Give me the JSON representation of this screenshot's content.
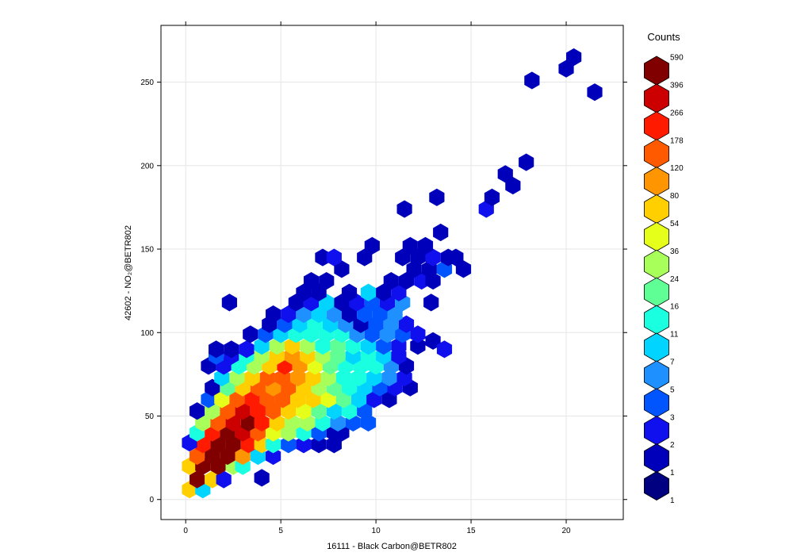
{
  "chart_data": {
    "type": "heatmap",
    "subtype": "hexbin",
    "xlabel": "16111 - Black Carbon@BETR802",
    "ylabel": "42602 - NO₂@BETR802",
    "xlim": [
      -1.3,
      23
    ],
    "ylim": [
      -12,
      284
    ],
    "x_ticks": [
      0,
      5,
      10,
      15,
      20
    ],
    "y_ticks": [
      0,
      50,
      100,
      150,
      200,
      250
    ],
    "grid": true,
    "legend": {
      "title": "Counts",
      "placement": "right",
      "breaks": [
        "590",
        "396",
        "266",
        "178",
        "120",
        "80",
        "54",
        "36",
        "24",
        "16",
        "11",
        "7",
        "5",
        "3",
        "2",
        "1",
        "1"
      ],
      "colors": [
        "#800000",
        "#cc0000",
        "#ff1a00",
        "#ff5a00",
        "#ff9500",
        "#ffcf00",
        "#e6ff1a",
        "#a8ff5a",
        "#60ff96",
        "#1affdf",
        "#00d4ff",
        "#1e90ff",
        "#0055ff",
        "#1010ee",
        "#0000bb",
        "#000080"
      ]
    },
    "hex_width": 0.8,
    "bins": [
      {
        "x": 0.2,
        "y": 6,
        "c": 54
      },
      {
        "x": 0.9,
        "y": 6,
        "c": 7
      },
      {
        "x": 0.6,
        "y": 12,
        "c": 396
      },
      {
        "x": 1.4,
        "y": 12,
        "c": 54
      },
      {
        "x": 2.0,
        "y": 12,
        "c": 2
      },
      {
        "x": 4.0,
        "y": 13,
        "c": 1
      },
      {
        "x": 0.2,
        "y": 20,
        "c": 54
      },
      {
        "x": 0.9,
        "y": 20,
        "c": 590
      },
      {
        "x": 1.7,
        "y": 20,
        "c": 396
      },
      {
        "x": 2.5,
        "y": 20,
        "c": 24
      },
      {
        "x": 3.0,
        "y": 20,
        "c": 11
      },
      {
        "x": 0.6,
        "y": 26,
        "c": 120
      },
      {
        "x": 1.4,
        "y": 26,
        "c": 590
      },
      {
        "x": 2.2,
        "y": 26,
        "c": 396
      },
      {
        "x": 3.0,
        "y": 26,
        "c": 80
      },
      {
        "x": 3.8,
        "y": 26,
        "c": 7
      },
      {
        "x": 4.6,
        "y": 26,
        "c": 2
      },
      {
        "x": 0.9,
        "y": 33,
        "c": 178
      },
      {
        "x": 1.7,
        "y": 33,
        "c": 396
      },
      {
        "x": 2.5,
        "y": 33,
        "c": 396
      },
      {
        "x": 3.3,
        "y": 33,
        "c": 178
      },
      {
        "x": 4.0,
        "y": 33,
        "c": 54
      },
      {
        "x": 4.6,
        "y": 33,
        "c": 11
      },
      {
        "x": 5.4,
        "y": 33,
        "c": 3
      },
      {
        "x": 6.2,
        "y": 33,
        "c": 2
      },
      {
        "x": 7.0,
        "y": 33,
        "c": 1
      },
      {
        "x": 7.8,
        "y": 33,
        "c": 1
      },
      {
        "x": 0.2,
        "y": 34,
        "c": 2
      },
      {
        "x": 0.6,
        "y": 40,
        "c": 11
      },
      {
        "x": 1.4,
        "y": 40,
        "c": 178
      },
      {
        "x": 2.2,
        "y": 40,
        "c": 590
      },
      {
        "x": 3.0,
        "y": 40,
        "c": 266
      },
      {
        "x": 3.8,
        "y": 40,
        "c": 120
      },
      {
        "x": 4.6,
        "y": 40,
        "c": 36
      },
      {
        "x": 5.4,
        "y": 40,
        "c": 24
      },
      {
        "x": 6.2,
        "y": 40,
        "c": 11
      },
      {
        "x": 7.0,
        "y": 40,
        "c": 3
      },
      {
        "x": 7.8,
        "y": 40,
        "c": 1
      },
      {
        "x": 8.2,
        "y": 40,
        "c": 1
      },
      {
        "x": 0.9,
        "y": 46,
        "c": 24
      },
      {
        "x": 1.7,
        "y": 46,
        "c": 120
      },
      {
        "x": 2.5,
        "y": 46,
        "c": 266
      },
      {
        "x": 3.3,
        "y": 46,
        "c": 396
      },
      {
        "x": 4.0,
        "y": 46,
        "c": 178
      },
      {
        "x": 4.8,
        "y": 46,
        "c": 54
      },
      {
        "x": 5.6,
        "y": 46,
        "c": 24
      },
      {
        "x": 6.4,
        "y": 46,
        "c": 24
      },
      {
        "x": 7.2,
        "y": 46,
        "c": 11
      },
      {
        "x": 8.0,
        "y": 46,
        "c": 5
      },
      {
        "x": 8.8,
        "y": 46,
        "c": 3
      },
      {
        "x": 9.6,
        "y": 46,
        "c": 3
      },
      {
        "x": 0.6,
        "y": 53,
        "c": 1
      },
      {
        "x": 1.4,
        "y": 53,
        "c": 24
      },
      {
        "x": 2.2,
        "y": 53,
        "c": 120
      },
      {
        "x": 3.0,
        "y": 53,
        "c": 266
      },
      {
        "x": 3.8,
        "y": 53,
        "c": 178
      },
      {
        "x": 4.6,
        "y": 53,
        "c": 120
      },
      {
        "x": 5.4,
        "y": 53,
        "c": 54
      },
      {
        "x": 6.2,
        "y": 53,
        "c": 36
      },
      {
        "x": 7.0,
        "y": 53,
        "c": 16
      },
      {
        "x": 7.8,
        "y": 53,
        "c": 7
      },
      {
        "x": 8.6,
        "y": 53,
        "c": 11
      },
      {
        "x": 9.4,
        "y": 53,
        "c": 3
      },
      {
        "x": 1.2,
        "y": 60,
        "c": 3
      },
      {
        "x": 1.9,
        "y": 60,
        "c": 36
      },
      {
        "x": 2.7,
        "y": 60,
        "c": 120
      },
      {
        "x": 3.5,
        "y": 60,
        "c": 178
      },
      {
        "x": 4.3,
        "y": 60,
        "c": 120
      },
      {
        "x": 5.1,
        "y": 60,
        "c": 120
      },
      {
        "x": 5.9,
        "y": 60,
        "c": 54
      },
      {
        "x": 6.7,
        "y": 60,
        "c": 54
      },
      {
        "x": 7.5,
        "y": 60,
        "c": 36
      },
      {
        "x": 8.3,
        "y": 60,
        "c": 16
      },
      {
        "x": 9.1,
        "y": 60,
        "c": 7
      },
      {
        "x": 9.9,
        "y": 60,
        "c": 2
      },
      {
        "x": 10.7,
        "y": 60,
        "c": 1
      },
      {
        "x": 1.4,
        "y": 67,
        "c": 1
      },
      {
        "x": 2.2,
        "y": 67,
        "c": 16
      },
      {
        "x": 3.0,
        "y": 67,
        "c": 54
      },
      {
        "x": 3.8,
        "y": 67,
        "c": 120
      },
      {
        "x": 4.6,
        "y": 67,
        "c": 80
      },
      {
        "x": 5.4,
        "y": 67,
        "c": 120
      },
      {
        "x": 6.2,
        "y": 67,
        "c": 54
      },
      {
        "x": 7.0,
        "y": 67,
        "c": 24
      },
      {
        "x": 7.8,
        "y": 67,
        "c": 16
      },
      {
        "x": 8.6,
        "y": 67,
        "c": 11
      },
      {
        "x": 9.4,
        "y": 67,
        "c": 7
      },
      {
        "x": 10.2,
        "y": 67,
        "c": 3
      },
      {
        "x": 11.0,
        "y": 67,
        "c": 2
      },
      {
        "x": 11.8,
        "y": 67,
        "c": 1
      },
      {
        "x": 1.9,
        "y": 73,
        "c": 7
      },
      {
        "x": 2.7,
        "y": 73,
        "c": 24
      },
      {
        "x": 3.5,
        "y": 73,
        "c": 54
      },
      {
        "x": 4.3,
        "y": 73,
        "c": 120
      },
      {
        "x": 5.1,
        "y": 73,
        "c": 120
      },
      {
        "x": 5.9,
        "y": 73,
        "c": 80
      },
      {
        "x": 6.7,
        "y": 73,
        "c": 54
      },
      {
        "x": 7.5,
        "y": 73,
        "c": 24
      },
      {
        "x": 8.3,
        "y": 73,
        "c": 11
      },
      {
        "x": 9.1,
        "y": 73,
        "c": 11
      },
      {
        "x": 9.9,
        "y": 73,
        "c": 7
      },
      {
        "x": 10.7,
        "y": 73,
        "c": 5
      },
      {
        "x": 11.5,
        "y": 73,
        "c": 2
      },
      {
        "x": 1.2,
        "y": 80,
        "c": 1
      },
      {
        "x": 2.0,
        "y": 80,
        "c": 2
      },
      {
        "x": 2.8,
        "y": 80,
        "c": 11
      },
      {
        "x": 3.6,
        "y": 80,
        "c": 24
      },
      {
        "x": 4.4,
        "y": 80,
        "c": 54
      },
      {
        "x": 5.2,
        "y": 80,
        "c": 178
      },
      {
        "x": 6.0,
        "y": 80,
        "c": 80
      },
      {
        "x": 6.8,
        "y": 80,
        "c": 36
      },
      {
        "x": 7.6,
        "y": 80,
        "c": 16
      },
      {
        "x": 8.4,
        "y": 80,
        "c": 11
      },
      {
        "x": 9.2,
        "y": 80,
        "c": 11
      },
      {
        "x": 10.0,
        "y": 80,
        "c": 11
      },
      {
        "x": 10.8,
        "y": 80,
        "c": 5
      },
      {
        "x": 11.6,
        "y": 80,
        "c": 1
      },
      {
        "x": 1.6,
        "y": 86,
        "c": 3
      },
      {
        "x": 2.4,
        "y": 86,
        "c": 2
      },
      {
        "x": 3.2,
        "y": 86,
        "c": 11
      },
      {
        "x": 4.0,
        "y": 86,
        "c": 24
      },
      {
        "x": 4.8,
        "y": 86,
        "c": 54
      },
      {
        "x": 5.6,
        "y": 86,
        "c": 80
      },
      {
        "x": 6.4,
        "y": 86,
        "c": 54
      },
      {
        "x": 7.2,
        "y": 86,
        "c": 24
      },
      {
        "x": 8.0,
        "y": 86,
        "c": 16
      },
      {
        "x": 8.8,
        "y": 86,
        "c": 7
      },
      {
        "x": 9.6,
        "y": 86,
        "c": 11
      },
      {
        "x": 10.4,
        "y": 86,
        "c": 7
      },
      {
        "x": 11.2,
        "y": 86,
        "c": 2
      },
      {
        "x": 1.6,
        "y": 90,
        "c": 1
      },
      {
        "x": 2.4,
        "y": 90,
        "c": 1
      },
      {
        "x": 3.2,
        "y": 90,
        "c": 2
      },
      {
        "x": 4.0,
        "y": 92,
        "c": 7
      },
      {
        "x": 4.8,
        "y": 92,
        "c": 24
      },
      {
        "x": 5.6,
        "y": 92,
        "c": 54
      },
      {
        "x": 6.4,
        "y": 92,
        "c": 24
      },
      {
        "x": 7.2,
        "y": 92,
        "c": 11
      },
      {
        "x": 8.0,
        "y": 92,
        "c": 16
      },
      {
        "x": 8.8,
        "y": 92,
        "c": 11
      },
      {
        "x": 9.6,
        "y": 92,
        "c": 7
      },
      {
        "x": 10.4,
        "y": 92,
        "c": 3
      },
      {
        "x": 11.2,
        "y": 92,
        "c": 2
      },
      {
        "x": 12.2,
        "y": 92,
        "c": 1
      },
      {
        "x": 13.0,
        "y": 95,
        "c": 1
      },
      {
        "x": 13.6,
        "y": 90,
        "c": 2
      },
      {
        "x": 3.4,
        "y": 99,
        "c": 1
      },
      {
        "x": 4.2,
        "y": 99,
        "c": 3
      },
      {
        "x": 5.0,
        "y": 99,
        "c": 7
      },
      {
        "x": 5.8,
        "y": 99,
        "c": 11
      },
      {
        "x": 6.6,
        "y": 99,
        "c": 11
      },
      {
        "x": 7.4,
        "y": 99,
        "c": 11
      },
      {
        "x": 8.2,
        "y": 99,
        "c": 11
      },
      {
        "x": 9.0,
        "y": 99,
        "c": 5
      },
      {
        "x": 9.8,
        "y": 99,
        "c": 3
      },
      {
        "x": 10.6,
        "y": 99,
        "c": 5
      },
      {
        "x": 11.4,
        "y": 99,
        "c": 3
      },
      {
        "x": 12.2,
        "y": 99,
        "c": 2
      },
      {
        "x": 4.4,
        "y": 105,
        "c": 1
      },
      {
        "x": 5.2,
        "y": 105,
        "c": 3
      },
      {
        "x": 6.0,
        "y": 105,
        "c": 7
      },
      {
        "x": 6.8,
        "y": 105,
        "c": 11
      },
      {
        "x": 7.6,
        "y": 105,
        "c": 7
      },
      {
        "x": 8.4,
        "y": 105,
        "c": 5
      },
      {
        "x": 9.2,
        "y": 105,
        "c": 1
      },
      {
        "x": 10.0,
        "y": 105,
        "c": 3
      },
      {
        "x": 10.8,
        "y": 105,
        "c": 5
      },
      {
        "x": 11.6,
        "y": 105,
        "c": 2
      },
      {
        "x": 4.6,
        "y": 111,
        "c": 1
      },
      {
        "x": 5.4,
        "y": 111,
        "c": 2
      },
      {
        "x": 6.2,
        "y": 111,
        "c": 5
      },
      {
        "x": 7.0,
        "y": 111,
        "c": 7
      },
      {
        "x": 7.8,
        "y": 111,
        "c": 5
      },
      {
        "x": 8.6,
        "y": 111,
        "c": 1
      },
      {
        "x": 9.4,
        "y": 111,
        "c": 3
      },
      {
        "x": 10.2,
        "y": 111,
        "c": 3
      },
      {
        "x": 11.0,
        "y": 111,
        "c": 5
      },
      {
        "x": 2.3,
        "y": 118,
        "c": 1
      },
      {
        "x": 5.8,
        "y": 118,
        "c": 1
      },
      {
        "x": 6.6,
        "y": 118,
        "c": 2
      },
      {
        "x": 7.4,
        "y": 118,
        "c": 7
      },
      {
        "x": 8.2,
        "y": 118,
        "c": 1
      },
      {
        "x": 9.0,
        "y": 118,
        "c": 2
      },
      {
        "x": 9.8,
        "y": 118,
        "c": 3
      },
      {
        "x": 10.6,
        "y": 118,
        "c": 2
      },
      {
        "x": 11.4,
        "y": 118,
        "c": 5
      },
      {
        "x": 12.9,
        "y": 118,
        "c": 1
      },
      {
        "x": 6.2,
        "y": 124,
        "c": 1
      },
      {
        "x": 7.0,
        "y": 124,
        "c": 1
      },
      {
        "x": 8.6,
        "y": 124,
        "c": 1
      },
      {
        "x": 9.6,
        "y": 124,
        "c": 7
      },
      {
        "x": 10.4,
        "y": 124,
        "c": 1
      },
      {
        "x": 11.2,
        "y": 124,
        "c": 2
      },
      {
        "x": 6.6,
        "y": 131,
        "c": 1
      },
      {
        "x": 7.4,
        "y": 131,
        "c": 1
      },
      {
        "x": 10.8,
        "y": 131,
        "c": 1
      },
      {
        "x": 11.6,
        "y": 131,
        "c": 1
      },
      {
        "x": 12.4,
        "y": 131,
        "c": 2
      },
      {
        "x": 13.0,
        "y": 131,
        "c": 1
      },
      {
        "x": 8.2,
        "y": 138,
        "c": 1
      },
      {
        "x": 12.0,
        "y": 138,
        "c": 1
      },
      {
        "x": 12.8,
        "y": 138,
        "c": 1
      },
      {
        "x": 13.6,
        "y": 138,
        "c": 3
      },
      {
        "x": 14.6,
        "y": 138,
        "c": 1
      },
      {
        "x": 7.2,
        "y": 145,
        "c": 1
      },
      {
        "x": 7.8,
        "y": 145,
        "c": 2
      },
      {
        "x": 9.4,
        "y": 145,
        "c": 1
      },
      {
        "x": 11.4,
        "y": 145,
        "c": 1
      },
      {
        "x": 12.2,
        "y": 145,
        "c": 1
      },
      {
        "x": 13.0,
        "y": 145,
        "c": 2
      },
      {
        "x": 13.8,
        "y": 145,
        "c": 1
      },
      {
        "x": 14.2,
        "y": 145,
        "c": 1
      },
      {
        "x": 9.8,
        "y": 152,
        "c": 1
      },
      {
        "x": 11.8,
        "y": 152,
        "c": 1
      },
      {
        "x": 12.6,
        "y": 152,
        "c": 1
      },
      {
        "x": 13.4,
        "y": 160,
        "c": 1
      },
      {
        "x": 11.5,
        "y": 174,
        "c": 1
      },
      {
        "x": 15.8,
        "y": 174,
        "c": 2
      },
      {
        "x": 13.2,
        "y": 181,
        "c": 1
      },
      {
        "x": 16.1,
        "y": 181,
        "c": 1
      },
      {
        "x": 17.2,
        "y": 188,
        "c": 1
      },
      {
        "x": 16.8,
        "y": 195,
        "c": 1
      },
      {
        "x": 17.9,
        "y": 202,
        "c": 1
      },
      {
        "x": 18.2,
        "y": 251,
        "c": 1
      },
      {
        "x": 20.0,
        "y": 258,
        "c": 1
      },
      {
        "x": 20.4,
        "y": 265,
        "c": 1
      },
      {
        "x": 21.5,
        "y": 244,
        "c": 1
      }
    ]
  }
}
